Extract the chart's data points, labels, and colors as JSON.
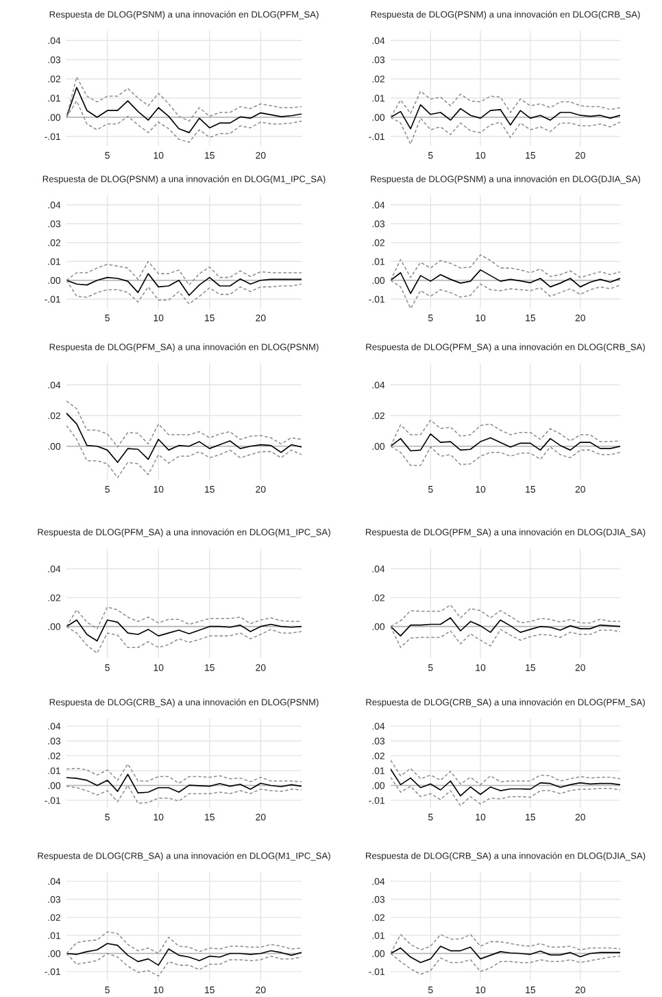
{
  "chart_data": [
    {
      "type": "line",
      "title": "Respuesta de DLOG(PSNM) a una innovación en DLOG(PFM_SA)",
      "x": [
        1,
        2,
        3,
        4,
        5,
        6,
        7,
        8,
        9,
        10,
        11,
        12,
        13,
        14,
        15,
        16,
        17,
        18,
        19,
        20,
        21,
        22,
        23,
        24
      ],
      "xlim": [
        1,
        24
      ],
      "xticks": [
        5,
        10,
        15,
        20
      ],
      "ylim": [
        -0.015,
        0.045
      ],
      "yticks": [
        {
          "value": -0.01,
          "label": "-.01"
        },
        {
          "value": 0,
          "label": ".00"
        },
        {
          "value": 0.01,
          "label": ".01"
        },
        {
          "value": 0.02,
          "label": ".02"
        },
        {
          "value": 0.03,
          "label": ".03"
        },
        {
          "value": 0.04,
          "label": ".04"
        }
      ],
      "grid": true,
      "ref_lines": [
        {
          "axis": "y",
          "value": 0,
          "color": "#b4b4b4"
        }
      ],
      "series": [
        {
          "color": "#000000",
          "line_style": "solid",
          "values": [
            0,
            0.0155,
            0.0035,
            0,
            0.0035,
            0.0035,
            0.0085,
            0.003,
            -0.0015,
            0.005,
            0.0005,
            -0.006,
            -0.008,
            -0.0005,
            -0.0055,
            -0.003,
            -0.003,
            0.0002,
            -0.0005,
            0.0023,
            0.0013,
            0.0003,
            0.0008,
            0.0017
          ]
        },
        {
          "color": "#8c8c8c",
          "line_style": "dashed",
          "values": [
            0,
            0.021,
            0.011,
            0.008,
            0.011,
            0.011,
            0.015,
            0.01,
            0.006,
            0.0125,
            0.007,
            0.0005,
            -0.002,
            0.005,
            0.0005,
            0.0025,
            0.0025,
            0.0055,
            0.0045,
            0.007,
            0.006,
            0.005,
            0.005,
            0.0055
          ]
        },
        {
          "color": "#8c8c8c",
          "line_style": "dashed",
          "values": [
            0,
            0.0085,
            -0.0035,
            -0.0065,
            -0.0035,
            -0.0035,
            0.0005,
            -0.004,
            -0.008,
            -0.0025,
            -0.006,
            -0.0115,
            -0.013,
            -0.0065,
            -0.0105,
            -0.0085,
            -0.0085,
            -0.0045,
            -0.0055,
            -0.0025,
            -0.0035,
            -0.0035,
            -0.003,
            -0.002
          ]
        }
      ]
    },
    {
      "type": "line",
      "title": "Respuesta de DLOG(PSNM) a una innovación en DLOG(CRB_SA)",
      "x": [
        1,
        2,
        3,
        4,
        5,
        6,
        7,
        8,
        9,
        10,
        11,
        12,
        13,
        14,
        15,
        16,
        17,
        18,
        19,
        20,
        21,
        22,
        23,
        24
      ],
      "xlim": [
        1,
        24
      ],
      "xticks": [
        5,
        10,
        15,
        20
      ],
      "ylim": [
        -0.015,
        0.045
      ],
      "yticks": [
        {
          "value": -0.01,
          "label": "-.01"
        },
        {
          "value": 0,
          "label": ".00"
        },
        {
          "value": 0.01,
          "label": ".01"
        },
        {
          "value": 0.02,
          "label": ".02"
        },
        {
          "value": 0.03,
          "label": ".03"
        },
        {
          "value": 0.04,
          "label": ".04"
        }
      ],
      "grid": true,
      "ref_lines": [
        {
          "axis": "y",
          "value": 0,
          "color": "#b4b4b4"
        }
      ],
      "series": [
        {
          "color": "#000000",
          "line_style": "solid",
          "values": [
            0,
            0.003,
            -0.006,
            0.0065,
            0.0015,
            0.0025,
            -0.0015,
            0.0045,
            0.001,
            -0.0005,
            0.0035,
            0.004,
            -0.004,
            0.0035,
            -0.0005,
            0.001,
            -0.0015,
            0.0025,
            0.0025,
            0.001,
            0.0005,
            0.001,
            -0.0005,
            0.001
          ]
        },
        {
          "color": "#8c8c8c",
          "line_style": "dashed",
          "values": [
            0,
            0.009,
            0.002,
            0.0135,
            0.0095,
            0.0105,
            0.006,
            0.012,
            0.0085,
            0.008,
            0.011,
            0.0105,
            0.0025,
            0.0095,
            0.006,
            0.007,
            0.005,
            0.008,
            0.008,
            0.006,
            0.0055,
            0.0055,
            0.004,
            0.005
          ]
        },
        {
          "color": "#8c8c8c",
          "line_style": "dashed",
          "values": [
            0,
            -0.003,
            -0.014,
            -0.0005,
            -0.0065,
            -0.005,
            -0.009,
            -0.003,
            -0.007,
            -0.008,
            -0.004,
            -0.0025,
            -0.0105,
            -0.003,
            -0.0065,
            -0.005,
            -0.0075,
            -0.003,
            -0.003,
            -0.0045,
            -0.0045,
            -0.0035,
            -0.005,
            -0.0025
          ]
        }
      ]
    },
    {
      "type": "line",
      "title": "Respuesta de DLOG(PSNM) a una innovación en DLOG(M1_IPC_SA)",
      "x": [
        1,
        2,
        3,
        4,
        5,
        6,
        7,
        8,
        9,
        10,
        11,
        12,
        13,
        14,
        15,
        16,
        17,
        18,
        19,
        20,
        21,
        22,
        23,
        24
      ],
      "xlim": [
        1,
        24
      ],
      "xticks": [
        5,
        10,
        15,
        20
      ],
      "ylim": [
        -0.015,
        0.045
      ],
      "yticks": [
        {
          "value": -0.01,
          "label": "-.01"
        },
        {
          "value": 0,
          "label": ".00"
        },
        {
          "value": 0.01,
          "label": ".01"
        },
        {
          "value": 0.02,
          "label": ".02"
        },
        {
          "value": 0.03,
          "label": ".03"
        },
        {
          "value": 0.04,
          "label": ".04"
        }
      ],
      "grid": true,
      "ref_lines": [
        {
          "axis": "y",
          "value": 0,
          "color": "#b4b4b4"
        }
      ],
      "series": [
        {
          "color": "#000000",
          "line_style": "solid",
          "values": [
            0,
            -0.002,
            -0.0025,
            0,
            0.0015,
            0.001,
            -0.0005,
            -0.0065,
            0.0035,
            -0.0035,
            -0.003,
            0,
            -0.008,
            -0.0025,
            0.0015,
            -0.003,
            -0.003,
            0.0007,
            -0.002,
            0,
            0.0005,
            0.0005,
            0.0005,
            0.0005
          ]
        },
        {
          "color": "#8c8c8c",
          "line_style": "dashed",
          "values": [
            0,
            0.004,
            0.004,
            0.0065,
            0.0085,
            0.0075,
            0.0065,
            0.0005,
            0.01,
            0.0035,
            0.0035,
            0.0055,
            -0.0025,
            0.0035,
            0.007,
            0.0015,
            0.0015,
            0.005,
            0.002,
            0.0045,
            0.004,
            0.004,
            0.004,
            0.004
          ]
        },
        {
          "color": "#8c8c8c",
          "line_style": "dashed",
          "values": [
            0,
            -0.0085,
            -0.009,
            -0.0065,
            -0.005,
            -0.005,
            -0.0065,
            -0.0115,
            -0.0035,
            -0.0105,
            -0.0105,
            -0.006,
            -0.0125,
            -0.0085,
            -0.004,
            -0.0075,
            -0.0075,
            -0.0035,
            -0.006,
            -0.0035,
            -0.0035,
            -0.003,
            -0.003,
            -0.002
          ]
        }
      ]
    },
    {
      "type": "line",
      "title": "Respuesta de DLOG(PSNM) a una innovación en DLOG(DJIA_SA)",
      "x": [
        1,
        2,
        3,
        4,
        5,
        6,
        7,
        8,
        9,
        10,
        11,
        12,
        13,
        14,
        15,
        16,
        17,
        18,
        19,
        20,
        21,
        22,
        23,
        24
      ],
      "xlim": [
        1,
        24
      ],
      "xticks": [
        5,
        10,
        15,
        20
      ],
      "ylim": [
        -0.015,
        0.045
      ],
      "yticks": [
        {
          "value": -0.01,
          "label": "-.01"
        },
        {
          "value": 0,
          "label": ".00"
        },
        {
          "value": 0.01,
          "label": ".01"
        },
        {
          "value": 0.02,
          "label": ".02"
        },
        {
          "value": 0.03,
          "label": ".03"
        },
        {
          "value": 0.04,
          "label": ".04"
        }
      ],
      "grid": true,
      "ref_lines": [
        {
          "axis": "y",
          "value": 0,
          "color": "#b4b4b4"
        }
      ],
      "series": [
        {
          "color": "#000000",
          "line_style": "solid",
          "values": [
            0,
            0.004,
            -0.007,
            0.0025,
            -0.0005,
            0.003,
            0.0005,
            -0.0015,
            -0.0005,
            0.0055,
            0.0025,
            -0.0005,
            0.0005,
            -0.0003,
            -0.0013,
            0.001,
            -0.0035,
            -0.0015,
            0.001,
            -0.0035,
            -0.001,
            0.0005,
            -0.001,
            0.001
          ]
        },
        {
          "color": "#8c8c8c",
          "line_style": "dashed",
          "values": [
            0,
            0.011,
            0.0015,
            0.0095,
            0.0065,
            0.0105,
            0.009,
            0.0065,
            0.007,
            0.0135,
            0.0105,
            0.0065,
            0.0065,
            0.0055,
            0.004,
            0.006,
            0.002,
            0.003,
            0.005,
            0.0015,
            0.003,
            0.0045,
            0.003,
            0.0045
          ]
        },
        {
          "color": "#8c8c8c",
          "line_style": "dashed",
          "values": [
            0,
            -0.0035,
            -0.015,
            -0.0055,
            -0.0085,
            -0.005,
            -0.0065,
            -0.009,
            -0.008,
            -0.002,
            -0.005,
            -0.0055,
            -0.0045,
            -0.005,
            -0.0055,
            -0.004,
            -0.0085,
            -0.0065,
            -0.0045,
            -0.0075,
            -0.005,
            -0.0035,
            -0.0045,
            -0.0025
          ]
        }
      ]
    },
    {
      "type": "line",
      "title": "Respuesta de DLOG(PFM_SA) a una innovación en DLOG(PSNM)",
      "x": [
        1,
        2,
        3,
        4,
        5,
        6,
        7,
        8,
        9,
        10,
        11,
        12,
        13,
        14,
        15,
        16,
        17,
        18,
        19,
        20,
        21,
        22,
        23,
        24
      ],
      "xlim": [
        1,
        24
      ],
      "xticks": [
        5,
        10,
        15,
        20
      ],
      "ylim": [
        -0.022,
        0.054
      ],
      "yticks": [
        {
          "value": 0,
          "label": ".00"
        },
        {
          "value": 0.02,
          "label": ".02"
        },
        {
          "value": 0.04,
          "label": ".04"
        }
      ],
      "grid": true,
      "ref_lines": [
        {
          "axis": "y",
          "value": 0,
          "color": "#b4b4b4"
        }
      ],
      "series": [
        {
          "color": "#000000",
          "line_style": "solid",
          "values": [
            0.0215,
            0.0145,
            0.0005,
            0,
            -0.0025,
            -0.0105,
            -0.0015,
            -0.002,
            -0.0085,
            0.0045,
            -0.0025,
            0.0005,
            0,
            0.003,
            -0.0015,
            0.001,
            0.0035,
            -0.0015,
            0,
            0.001,
            0.0005,
            -0.004,
            0.001,
            -0.0005
          ]
        },
        {
          "color": "#8c8c8c",
          "line_style": "dashed",
          "values": [
            0.0295,
            0.0245,
            0.0105,
            0.0105,
            0.008,
            -0.0005,
            0.009,
            0.0085,
            0.0015,
            0.0145,
            0.0075,
            0.0075,
            0.0075,
            0.0095,
            0.0055,
            0.008,
            0.0095,
            0.0045,
            0.0065,
            0.007,
            0.0055,
            0.0015,
            0.0055,
            0.0045
          ]
        },
        {
          "color": "#8c8c8c",
          "line_style": "dashed",
          "values": [
            0.0135,
            0.0045,
            -0.0095,
            -0.0095,
            -0.0115,
            -0.0205,
            -0.0105,
            -0.0115,
            -0.0185,
            -0.0055,
            -0.011,
            -0.0065,
            -0.0065,
            -0.0035,
            -0.0075,
            -0.0055,
            -0.0025,
            -0.0075,
            -0.0055,
            -0.0035,
            -0.0035,
            -0.0075,
            -0.0025,
            -0.0055
          ]
        }
      ]
    },
    {
      "type": "line",
      "title": "Respuesta de DLOG(PFM_SA) a una innovación en DLOG(CRB_SA)",
      "x": [
        1,
        2,
        3,
        4,
        5,
        6,
        7,
        8,
        9,
        10,
        11,
        12,
        13,
        14,
        15,
        16,
        17,
        18,
        19,
        20,
        21,
        22,
        23,
        24
      ],
      "xlim": [
        1,
        24
      ],
      "xticks": [
        5,
        10,
        15,
        20
      ],
      "ylim": [
        -0.022,
        0.054
      ],
      "yticks": [
        {
          "value": 0,
          "label": ".00"
        },
        {
          "value": 0.02,
          "label": ".02"
        },
        {
          "value": 0.04,
          "label": ".04"
        }
      ],
      "grid": true,
      "ref_lines": [
        {
          "axis": "y",
          "value": 0,
          "color": "#b4b4b4"
        }
      ],
      "series": [
        {
          "color": "#000000",
          "line_style": "solid",
          "values": [
            0,
            0.005,
            -0.003,
            -0.0025,
            0.008,
            0.0025,
            0.003,
            -0.0025,
            -0.002,
            0.003,
            0.0055,
            0.0025,
            -0.0005,
            0.002,
            0.002,
            -0.0025,
            0.005,
            0.0005,
            -0.0025,
            0.0025,
            0.0025,
            -0.0015,
            -0.0015,
            0
          ]
        },
        {
          "color": "#8c8c8c",
          "line_style": "dashed",
          "values": [
            0,
            0.014,
            0.0075,
            0.0075,
            0.017,
            0.0115,
            0.0125,
            0.0065,
            0.0075,
            0.0135,
            0.0145,
            0.0105,
            0.0075,
            0.009,
            0.009,
            0.0045,
            0.0115,
            0.008,
            0.0035,
            0.0075,
            0.0075,
            0.003,
            0.003,
            0.0035
          ]
        },
        {
          "color": "#8c8c8c",
          "line_style": "dashed",
          "values": [
            0,
            -0.004,
            -0.0125,
            -0.0125,
            -0.0005,
            -0.0065,
            -0.0055,
            -0.012,
            -0.0115,
            -0.0065,
            -0.004,
            -0.004,
            -0.0065,
            -0.0045,
            -0.0045,
            -0.0085,
            -0.0005,
            -0.0055,
            -0.0075,
            -0.0025,
            -0.0025,
            -0.0055,
            -0.0055,
            -0.004
          ]
        }
      ]
    },
    {
      "type": "line",
      "title": "Respuesta de DLOG(PFM_SA) a una innovación en DLOG(M1_IPC_SA)",
      "x": [
        1,
        2,
        3,
        4,
        5,
        6,
        7,
        8,
        9,
        10,
        11,
        12,
        13,
        14,
        15,
        16,
        17,
        18,
        19,
        20,
        21,
        22,
        23,
        24
      ],
      "xlim": [
        1,
        24
      ],
      "xticks": [
        5,
        10,
        15,
        20
      ],
      "ylim": [
        -0.022,
        0.054
      ],
      "yticks": [
        {
          "value": 0,
          "label": ".00"
        },
        {
          "value": 0.02,
          "label": ".02"
        },
        {
          "value": 0.04,
          "label": ".04"
        }
      ],
      "grid": true,
      "ref_lines": [
        {
          "axis": "y",
          "value": 0,
          "color": "#b4b4b4"
        }
      ],
      "series": [
        {
          "color": "#000000",
          "line_style": "solid",
          "values": [
            0,
            0.0045,
            -0.0055,
            -0.01,
            0.0045,
            0.003,
            -0.0045,
            -0.0055,
            -0.002,
            -0.0065,
            -0.0045,
            -0.0025,
            -0.005,
            -0.0025,
            0,
            0,
            -0.0005,
            0.001,
            -0.0035,
            0,
            0.0015,
            0,
            -0.0005,
            0
          ]
        },
        {
          "color": "#8c8c8c",
          "line_style": "dashed",
          "values": [
            0,
            0.0115,
            0.003,
            -0.0015,
            0.0135,
            0.0115,
            0.0065,
            0.0035,
            0.0065,
            0.0025,
            0.005,
            0.005,
            0.0015,
            0.0035,
            0.0055,
            0.0055,
            0.0055,
            0.0065,
            0.002,
            0.0045,
            0.006,
            0.004,
            0.0035,
            0.0035
          ]
        },
        {
          "color": "#8c8c8c",
          "line_style": "dashed",
          "values": [
            0,
            -0.0045,
            -0.013,
            -0.0185,
            -0.0045,
            -0.006,
            -0.0145,
            -0.0145,
            -0.0105,
            -0.0145,
            -0.0125,
            -0.0085,
            -0.011,
            -0.009,
            -0.0065,
            -0.0065,
            -0.0065,
            -0.0045,
            -0.0085,
            -0.0055,
            -0.002,
            -0.0045,
            -0.0045,
            -0.0035
          ]
        }
      ]
    },
    {
      "type": "line",
      "title": "Respuesta de DLOG(PFM_SA) a una innovación en DLOG(DJIA_SA)",
      "x": [
        1,
        2,
        3,
        4,
        5,
        6,
        7,
        8,
        9,
        10,
        11,
        12,
        13,
        14,
        15,
        16,
        17,
        18,
        19,
        20,
        21,
        22,
        23,
        24
      ],
      "xlim": [
        1,
        24
      ],
      "xticks": [
        5,
        10,
        15,
        20
      ],
      "ylim": [
        -0.022,
        0.054
      ],
      "yticks": [
        {
          "value": 0,
          "label": ".00"
        },
        {
          "value": 0.02,
          "label": ".02"
        },
        {
          "value": 0.04,
          "label": ".04"
        }
      ],
      "grid": true,
      "ref_lines": [
        {
          "axis": "y",
          "value": 0,
          "color": "#b4b4b4"
        }
      ],
      "series": [
        {
          "color": "#000000",
          "line_style": "solid",
          "values": [
            0,
            -0.0065,
            0.001,
            0.001,
            0.0015,
            0.0015,
            0.006,
            -0.003,
            0.0035,
            0.0005,
            -0.004,
            0.0045,
            0.0005,
            -0.004,
            -0.002,
            0,
            -0.0005,
            -0.0025,
            0.0005,
            -0.0015,
            -0.0015,
            0.001,
            0.0005,
            0
          ]
        },
        {
          "color": "#8c8c8c",
          "line_style": "dashed",
          "values": [
            0,
            0.004,
            0.011,
            0.0105,
            0.0105,
            0.0105,
            0.015,
            0.006,
            0.0125,
            0.011,
            0.006,
            0.011,
            0.007,
            0.0025,
            0.0035,
            0.0055,
            0.005,
            0.003,
            0.005,
            0.0025,
            0.0025,
            0.005,
            0.0035,
            0.0035
          ]
        },
        {
          "color": "#8c8c8c",
          "line_style": "dashed",
          "values": [
            0,
            -0.0145,
            -0.008,
            -0.0075,
            -0.0075,
            -0.0075,
            -0.003,
            -0.012,
            -0.005,
            -0.0095,
            -0.0135,
            -0.002,
            -0.006,
            -0.0095,
            -0.007,
            -0.0055,
            -0.006,
            -0.0075,
            -0.004,
            -0.0055,
            -0.0055,
            -0.0025,
            -0.0025,
            -0.0035
          ]
        }
      ]
    },
    {
      "type": "line",
      "title": "Respuesta de DLOG(CRB_SA) a una innovación en DLOG(PSNM)",
      "x": [
        1,
        2,
        3,
        4,
        5,
        6,
        7,
        8,
        9,
        10,
        11,
        12,
        13,
        14,
        15,
        16,
        17,
        18,
        19,
        20,
        21,
        22,
        23,
        24
      ],
      "xlim": [
        1,
        24
      ],
      "xticks": [
        5,
        10,
        15,
        20
      ],
      "ylim": [
        -0.015,
        0.045
      ],
      "yticks": [
        {
          "value": -0.01,
          "label": "-.01"
        },
        {
          "value": 0,
          "label": ".00"
        },
        {
          "value": 0.01,
          "label": ".01"
        },
        {
          "value": 0.02,
          "label": ".02"
        },
        {
          "value": 0.03,
          "label": ".03"
        },
        {
          "value": 0.04,
          "label": ".04"
        }
      ],
      "grid": true,
      "ref_lines": [
        {
          "axis": "y",
          "value": 0,
          "color": "#b4b4b4"
        }
      ],
      "series": [
        {
          "color": "#000000",
          "line_style": "solid",
          "values": [
            0.0053,
            0.0048,
            0.0035,
            0,
            0.0035,
            -0.004,
            0.0075,
            -0.005,
            -0.0045,
            -0.0015,
            -0.0015,
            -0.0045,
            0.0002,
            -0.0002,
            -0.0005,
            0.0013,
            -0.0005,
            0.0008,
            -0.0025,
            0.0015,
            0,
            -0.0008,
            0.0005,
            -0.0005
          ]
        },
        {
          "color": "#8c8c8c",
          "line_style": "dashed",
          "values": [
            0.011,
            0.0115,
            0.0105,
            0.007,
            0.0105,
            0.0035,
            0.0145,
            0.003,
            0.003,
            0.006,
            0.006,
            0.0015,
            0.006,
            0.006,
            0.0055,
            0.0065,
            0.0045,
            0.005,
            0.0025,
            0.0055,
            0.003,
            0.003,
            0.003,
            0.0025
          ]
        },
        {
          "color": "#8c8c8c",
          "line_style": "dashed",
          "values": [
            -0.0005,
            -0.0015,
            -0.0035,
            -0.0065,
            -0.0035,
            -0.011,
            0,
            -0.012,
            -0.0115,
            -0.0085,
            -0.0085,
            -0.0105,
            -0.0055,
            -0.0055,
            -0.0055,
            -0.0045,
            -0.0055,
            -0.0035,
            -0.0055,
            -0.0025,
            -0.0035,
            -0.004,
            -0.0025,
            -0.003
          ]
        }
      ]
    },
    {
      "type": "line",
      "title": "Respuesta de DLOG(CRB_SA) a una innovación en DLOG(PFM_SA)",
      "x": [
        1,
        2,
        3,
        4,
        5,
        6,
        7,
        8,
        9,
        10,
        11,
        12,
        13,
        14,
        15,
        16,
        17,
        18,
        19,
        20,
        21,
        22,
        23,
        24
      ],
      "xlim": [
        1,
        24
      ],
      "xticks": [
        5,
        10,
        15,
        20
      ],
      "ylim": [
        -0.015,
        0.045
      ],
      "yticks": [
        {
          "value": -0.01,
          "label": "-.01"
        },
        {
          "value": 0,
          "label": ".00"
        },
        {
          "value": 0.01,
          "label": ".01"
        },
        {
          "value": 0.02,
          "label": ".02"
        },
        {
          "value": 0.03,
          "label": ".03"
        },
        {
          "value": 0.04,
          "label": ".04"
        }
      ],
      "grid": true,
      "ref_lines": [
        {
          "axis": "y",
          "value": 0,
          "color": "#b4b4b4"
        }
      ],
      "series": [
        {
          "color": "#000000",
          "line_style": "solid",
          "values": [
            0.011,
            0.0005,
            0.005,
            -0.0015,
            0.001,
            -0.003,
            0.003,
            -0.007,
            -0.001,
            -0.006,
            -0.001,
            -0.0035,
            -0.0023,
            -0.0023,
            -0.0025,
            0.0018,
            0.0013,
            -0.0013,
            0.0005,
            0.0018,
            0.001,
            0.0013,
            0.0013,
            0.0005
          ]
        },
        {
          "color": "#8c8c8c",
          "line_style": "dashed",
          "values": [
            0.017,
            0.0065,
            0.0115,
            0.0045,
            0.007,
            0.0035,
            0.0095,
            0.001,
            0.0055,
            0.0005,
            0.0065,
            0.0025,
            0.003,
            0.003,
            0.003,
            0.007,
            0.0065,
            0.003,
            0.0045,
            0.006,
            0.005,
            0.0055,
            0.0055,
            0.0045
          ]
        },
        {
          "color": "#8c8c8c",
          "line_style": "dashed",
          "values": [
            0.0055,
            -0.0045,
            -0.0005,
            -0.0075,
            -0.0055,
            -0.0095,
            -0.0035,
            -0.0135,
            -0.0075,
            -0.0125,
            -0.0085,
            -0.009,
            -0.0075,
            -0.0075,
            -0.008,
            -0.0035,
            -0.0035,
            -0.0055,
            -0.0035,
            -0.0025,
            -0.0025,
            -0.002,
            -0.002,
            -0.003
          ]
        }
      ]
    },
    {
      "type": "line",
      "title": "Respuesta de DLOG(CRB_SA) a una innovación en DLOG(M1_IPC_SA)",
      "x": [
        1,
        2,
        3,
        4,
        5,
        6,
        7,
        8,
        9,
        10,
        11,
        12,
        13,
        14,
        15,
        16,
        17,
        18,
        19,
        20,
        21,
        22,
        23,
        24
      ],
      "xlim": [
        1,
        24
      ],
      "xticks": [
        5,
        10,
        15,
        20
      ],
      "ylim": [
        -0.015,
        0.045
      ],
      "yticks": [
        {
          "value": -0.01,
          "label": "-.01"
        },
        {
          "value": 0,
          "label": ".00"
        },
        {
          "value": 0.01,
          "label": ".01"
        },
        {
          "value": 0.02,
          "label": ".02"
        },
        {
          "value": 0.03,
          "label": ".03"
        },
        {
          "value": 0.04,
          "label": ".04"
        }
      ],
      "grid": true,
      "ref_lines": [
        {
          "axis": "y",
          "value": 0,
          "color": "#b4b4b4"
        }
      ],
      "series": [
        {
          "color": "#000000",
          "line_style": "solid",
          "values": [
            0,
            -0.0005,
            0.001,
            0.002,
            0.0055,
            0.0045,
            -0.001,
            -0.0045,
            -0.003,
            -0.0065,
            0.0025,
            -0.001,
            -0.002,
            -0.004,
            -0.0015,
            -0.002,
            0,
            0,
            -0.0005,
            0,
            0.0015,
            0.0005,
            -0.001,
            0.0005
          ]
        },
        {
          "color": "#8c8c8c",
          "line_style": "dashed",
          "values": [
            0,
            0.006,
            0.007,
            0.0075,
            0.012,
            0.011,
            0.005,
            0.0015,
            0.003,
            0,
            0.009,
            0.004,
            0.0035,
            0.001,
            0.003,
            0.0025,
            0.004,
            0.004,
            0.0035,
            0.0035,
            0.005,
            0.004,
            0.0025,
            0.003
          ]
        },
        {
          "color": "#8c8c8c",
          "line_style": "dashed",
          "values": [
            0,
            -0.006,
            -0.005,
            -0.004,
            0,
            -0.002,
            -0.007,
            -0.0105,
            -0.0095,
            -0.0125,
            -0.0045,
            -0.0065,
            -0.0065,
            -0.009,
            -0.006,
            -0.006,
            -0.0035,
            -0.0035,
            -0.004,
            -0.0035,
            -0.0015,
            -0.003,
            -0.003,
            -0.002
          ]
        }
      ]
    },
    {
      "type": "line",
      "title": "Respuesta de DLOG(CRB_SA) a una innovación en DLOG(DJIA_SA)",
      "x": [
        1,
        2,
        3,
        4,
        5,
        6,
        7,
        8,
        9,
        10,
        11,
        12,
        13,
        14,
        15,
        16,
        17,
        18,
        19,
        20,
        21,
        22,
        23,
        24
      ],
      "xlim": [
        1,
        24
      ],
      "xticks": [
        5,
        10,
        15,
        20
      ],
      "ylim": [
        -0.015,
        0.045
      ],
      "yticks": [
        {
          "value": -0.01,
          "label": "-.01"
        },
        {
          "value": 0,
          "label": ".00"
        },
        {
          "value": 0.01,
          "label": ".01"
        },
        {
          "value": 0.02,
          "label": ".02"
        },
        {
          "value": 0.03,
          "label": ".03"
        },
        {
          "value": 0.04,
          "label": ".04"
        }
      ],
      "grid": true,
      "ref_lines": [
        {
          "axis": "y",
          "value": 0,
          "color": "#b4b4b4"
        }
      ],
      "series": [
        {
          "color": "#000000",
          "line_style": "solid",
          "values": [
            0,
            0.003,
            -0.002,
            -0.005,
            -0.003,
            0.004,
            0.0015,
            0.0015,
            0.0035,
            -0.003,
            -0.001,
            0.001,
            0.0003,
            0,
            -0.0005,
            0.0013,
            -0.0008,
            -0.0008,
            0.0005,
            -0.0018,
            0,
            0.0005,
            0.0005,
            0.0005
          ]
        },
        {
          "color": "#8c8c8c",
          "line_style": "dashed",
          "values": [
            0,
            0.0105,
            0.005,
            0.002,
            0.004,
            0.0105,
            0.008,
            0.008,
            0.0105,
            0.004,
            0.0065,
            0.0065,
            0.0055,
            0.0045,
            0.004,
            0.0055,
            0.0035,
            0.0035,
            0.004,
            0.002,
            0.003,
            0.003,
            0.003,
            0.0025
          ]
        },
        {
          "color": "#8c8c8c",
          "line_style": "dashed",
          "values": [
            0,
            -0.0045,
            -0.0085,
            -0.0115,
            -0.0095,
            -0.0025,
            -0.005,
            -0.005,
            -0.0035,
            -0.01,
            -0.008,
            -0.0045,
            -0.0045,
            -0.005,
            -0.005,
            -0.0035,
            -0.0045,
            -0.0045,
            -0.0035,
            -0.005,
            -0.004,
            -0.003,
            -0.002,
            -0.0015
          ]
        }
      ]
    }
  ]
}
